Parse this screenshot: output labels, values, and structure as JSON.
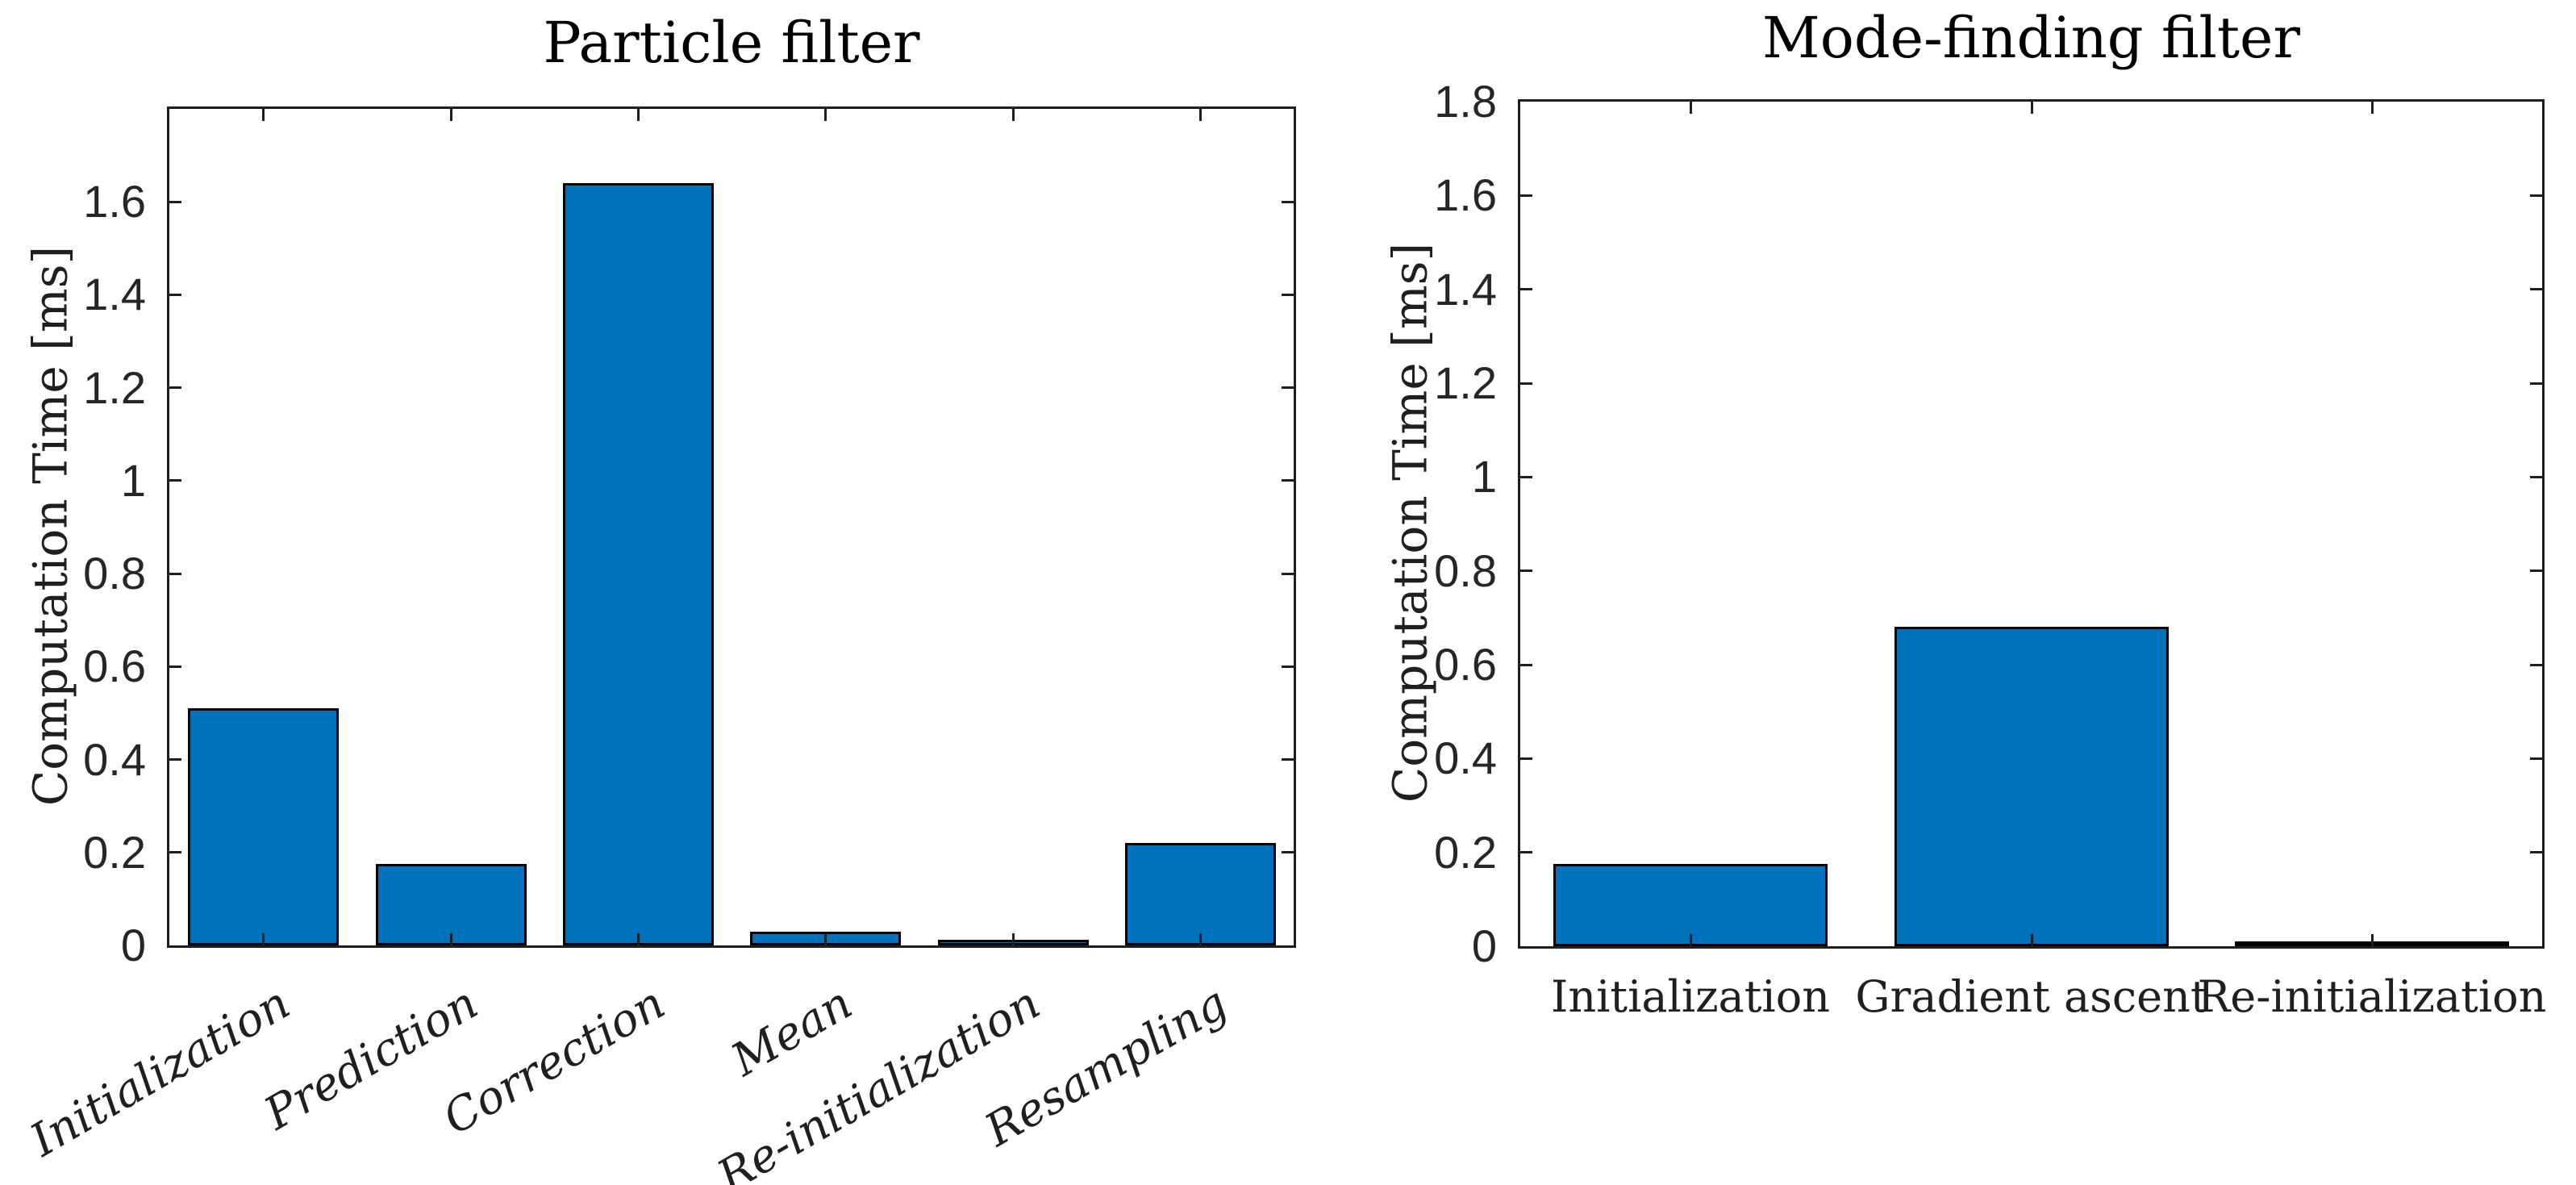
{
  "figure": {
    "background": "#ffffff",
    "axis_color": "#1f1f1f",
    "tick_text_color": "#262626"
  },
  "chart_data": [
    {
      "type": "bar",
      "title": "Particle filter",
      "ylabel": "Computation Time [ms]",
      "xlabel": "",
      "categories": [
        "Initialization",
        "Prediction",
        "Correction",
        "Mean",
        "Re-initialization",
        "Resampling"
      ],
      "values": [
        0.51,
        0.175,
        1.64,
        0.03,
        0.012,
        0.22
      ],
      "ylim": [
        0,
        1.8
      ],
      "ytick_labels": [
        "0",
        "0.2",
        "0.4",
        "0.6",
        "0.8",
        "1",
        "1.2",
        "1.4",
        "1.6"
      ],
      "bar_color": "#0072BD",
      "bar_edge_color": "#000000",
      "xtick_rotation_deg": -30,
      "grid": false,
      "legend": null
    },
    {
      "type": "bar",
      "title": "Mode-finding filter",
      "ylabel": "Computation Time [ms]",
      "xlabel": "",
      "categories": [
        "Initialization",
        "Gradient ascent",
        "Re-initialization"
      ],
      "values": [
        0.175,
        0.68,
        0.005
      ],
      "ylim": [
        0,
        1.8
      ],
      "ytick_labels": [
        "0",
        "0.2",
        "0.4",
        "0.6",
        "0.8",
        "1",
        "1.2",
        "1.4",
        "1.6",
        "1.8"
      ],
      "bar_color": "#0072BD",
      "bar_edge_color": "#000000",
      "xtick_rotation_deg": 0,
      "grid": false,
      "legend": null
    }
  ]
}
